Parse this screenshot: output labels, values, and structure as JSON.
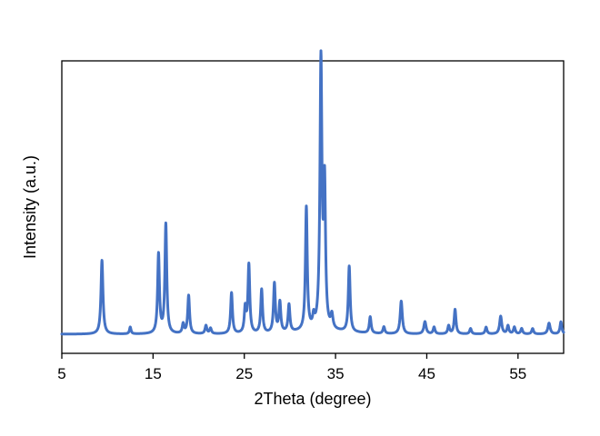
{
  "chart_data": {
    "type": "line",
    "title": "",
    "xlabel": "2Theta (degree)",
    "ylabel": "Intensity (a.u.)",
    "xlim": [
      5,
      60
    ],
    "ylim": [
      -0.07,
      1.0
    ],
    "xticks": [
      5,
      15,
      25,
      35,
      45,
      55
    ],
    "xtick_labels": [
      "5",
      "15",
      "25",
      "35",
      "45",
      "55"
    ],
    "yticks_shown": false,
    "grid": false,
    "legend": "none",
    "baseline": 0.0,
    "series": [
      {
        "color": "#4472c4",
        "peaks": [
          {
            "x": 9.4,
            "h": 0.27,
            "w": 0.13
          },
          {
            "x": 12.5,
            "h": 0.025,
            "w": 0.1
          },
          {
            "x": 15.6,
            "h": 0.29,
            "w": 0.12
          },
          {
            "x": 16.4,
            "h": 0.4,
            "w": 0.12
          },
          {
            "x": 18.3,
            "h": 0.035,
            "w": 0.12
          },
          {
            "x": 18.9,
            "h": 0.14,
            "w": 0.12
          },
          {
            "x": 20.8,
            "h": 0.03,
            "w": 0.12
          },
          {
            "x": 21.3,
            "h": 0.02,
            "w": 0.12
          },
          {
            "x": 23.6,
            "h": 0.15,
            "w": 0.12
          },
          {
            "x": 25.1,
            "h": 0.09,
            "w": 0.12
          },
          {
            "x": 25.5,
            "h": 0.25,
            "w": 0.12
          },
          {
            "x": 26.9,
            "h": 0.16,
            "w": 0.12
          },
          {
            "x": 28.3,
            "h": 0.18,
            "w": 0.12
          },
          {
            "x": 28.9,
            "h": 0.11,
            "w": 0.12
          },
          {
            "x": 29.9,
            "h": 0.1,
            "w": 0.12
          },
          {
            "x": 31.8,
            "h": 0.45,
            "w": 0.12
          },
          {
            "x": 32.6,
            "h": 0.04,
            "w": 0.12
          },
          {
            "x": 33.4,
            "h": 0.98,
            "w": 0.13
          },
          {
            "x": 33.8,
            "h": 0.51,
            "w": 0.12
          },
          {
            "x": 34.6,
            "h": 0.05,
            "w": 0.14
          },
          {
            "x": 36.5,
            "h": 0.24,
            "w": 0.12
          },
          {
            "x": 38.8,
            "h": 0.06,
            "w": 0.12
          },
          {
            "x": 40.3,
            "h": 0.025,
            "w": 0.12
          },
          {
            "x": 42.2,
            "h": 0.12,
            "w": 0.14
          },
          {
            "x": 44.8,
            "h": 0.045,
            "w": 0.15
          },
          {
            "x": 45.8,
            "h": 0.025,
            "w": 0.12
          },
          {
            "x": 47.4,
            "h": 0.03,
            "w": 0.12
          },
          {
            "x": 48.1,
            "h": 0.09,
            "w": 0.12
          },
          {
            "x": 49.8,
            "h": 0.02,
            "w": 0.12
          },
          {
            "x": 51.5,
            "h": 0.025,
            "w": 0.12
          },
          {
            "x": 53.1,
            "h": 0.065,
            "w": 0.14
          },
          {
            "x": 53.9,
            "h": 0.03,
            "w": 0.12
          },
          {
            "x": 54.6,
            "h": 0.025,
            "w": 0.12
          },
          {
            "x": 55.4,
            "h": 0.02,
            "w": 0.12
          },
          {
            "x": 56.6,
            "h": 0.02,
            "w": 0.12
          },
          {
            "x": 58.4,
            "h": 0.04,
            "w": 0.15
          },
          {
            "x": 59.7,
            "h": 0.045,
            "w": 0.12
          }
        ]
      }
    ]
  }
}
